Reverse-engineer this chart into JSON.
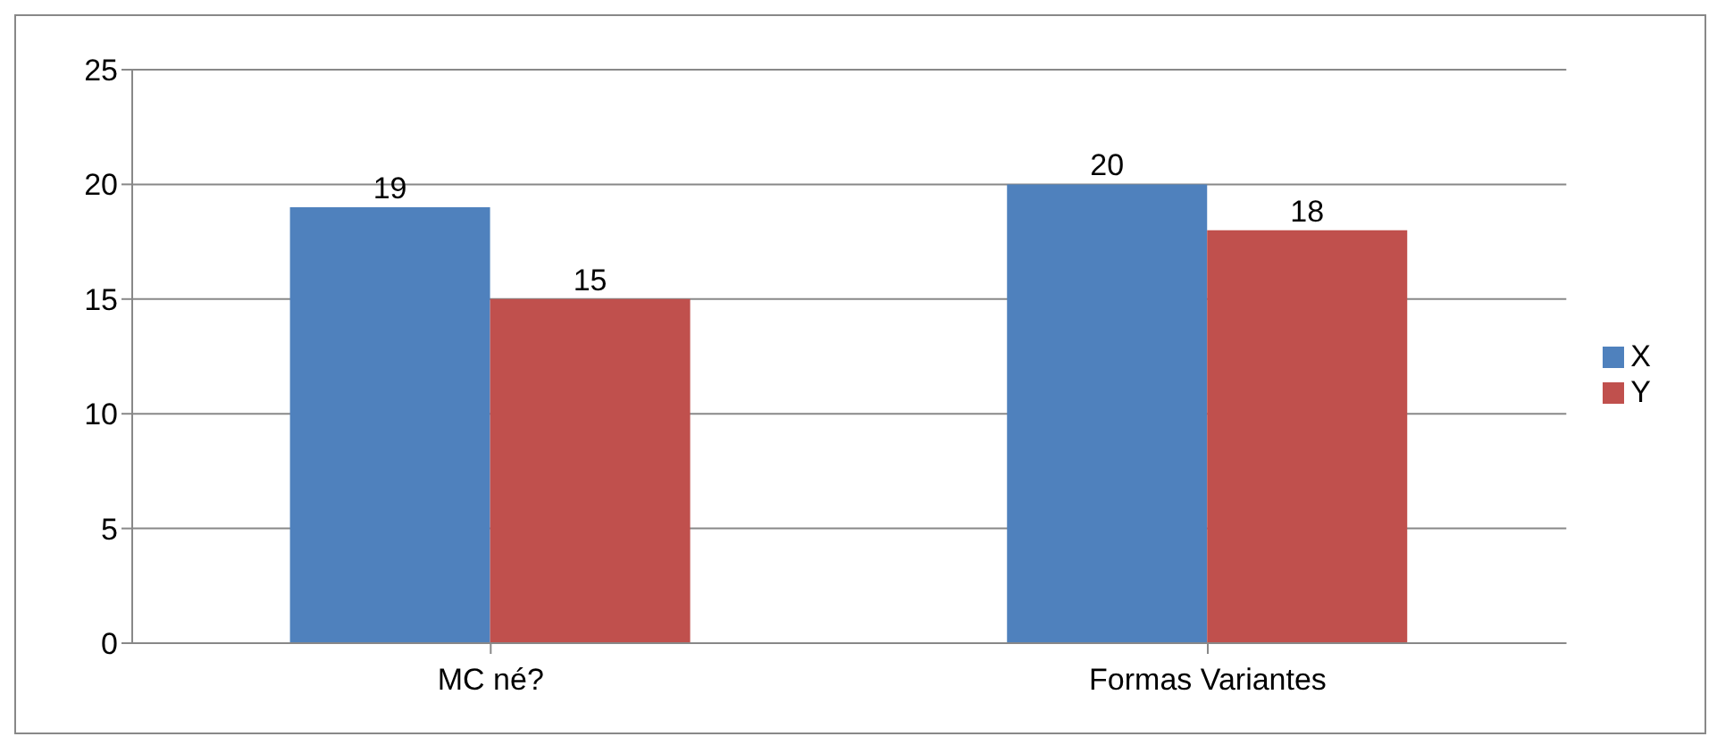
{
  "chart_data": {
    "type": "bar",
    "categories": [
      "MC né?",
      "Formas Variantes"
    ],
    "series": [
      {
        "name": "X",
        "color": "#4f81bd",
        "values": [
          19,
          20
        ]
      },
      {
        "name": "Y",
        "color": "#c0504d",
        "values": [
          15,
          18
        ]
      }
    ],
    "ylim": [
      0,
      25
    ],
    "yticks": [
      0,
      5,
      10,
      15,
      20,
      25
    ],
    "grid": "y",
    "legend": "right",
    "data_labels": true
  }
}
